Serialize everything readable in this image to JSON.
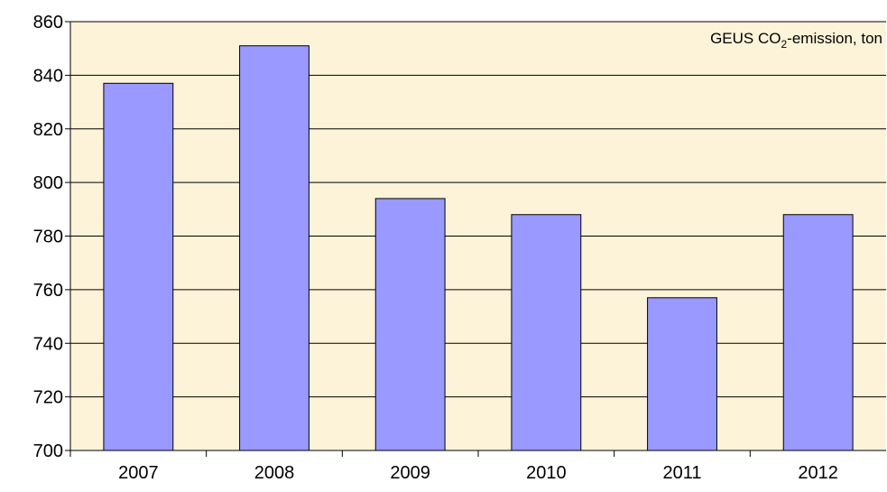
{
  "chart_data": {
    "type": "bar",
    "annotation": [
      "GEUS CO",
      "2",
      "-emission, ton"
    ],
    "categories": [
      "2007",
      "2008",
      "2009",
      "2010",
      "2011",
      "2012"
    ],
    "values": [
      837,
      851,
      794,
      788,
      757,
      788
    ],
    "color": "#9999ff",
    "ylim": [
      700,
      860
    ],
    "yticks": [
      700,
      720,
      740,
      760,
      780,
      800,
      820,
      840,
      860
    ],
    "grid": true
  }
}
